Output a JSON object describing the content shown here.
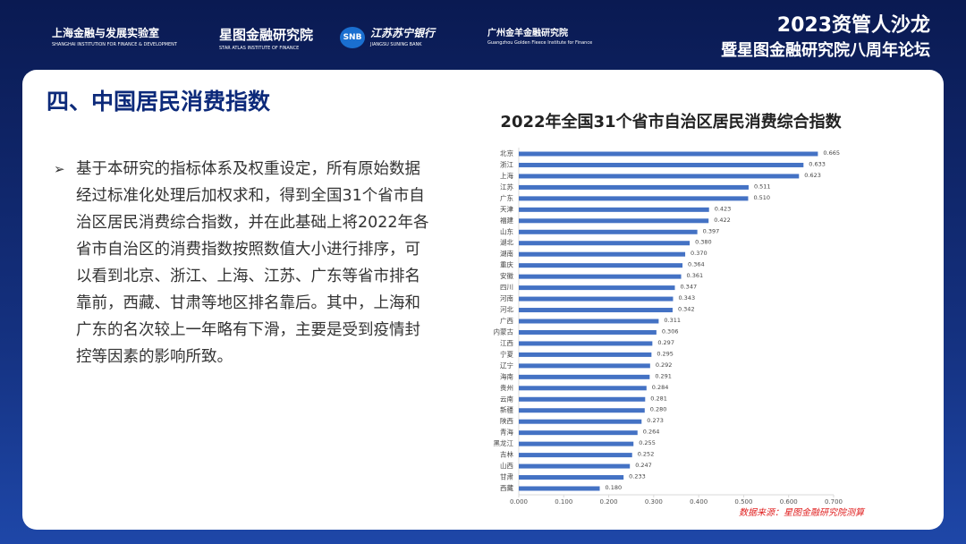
{
  "header": {
    "logos": [
      {
        "name": "上海金融与发展实验室",
        "sub": "SHANGHAI INSTITUTION FOR FINANCE & DEVELOPMENT"
      },
      {
        "name": "星图金融研究院",
        "sub": "STAR ATLAS INSTITUTE OF FINANCE"
      },
      {
        "badge": "SNB",
        "name": "江苏苏宁银行",
        "sub": "JIANGSU SUNING BANK"
      },
      {
        "name": "广州金羊金融研究院",
        "sub": "Guangzhou Golden Fleece Institute for Finance"
      }
    ],
    "event_title": "2023资管人沙龙",
    "event_subtitle": "暨星图金融研究院八周年论坛"
  },
  "slide": {
    "heading": "四、中国居民消费指数",
    "bullet": "基于本研究的指标体系及权重设定，所有原始数据经过标准化处理后加权求和，得到全国31个省市自治区居民消费综合指数，并在此基础上将2022年各省市自治区的消费指数按照数值大小进行排序，可以看到北京、浙江、上海、江苏、广东等省市排名靠前，西藏、甘肃等地区排名靠后。其中，上海和广东的名次较上一年略有下滑，主要是受到疫情封控等因素的影响所致。",
    "source": "数据来源：星图金融研究院测算"
  },
  "chart_data": {
    "type": "hbar",
    "title": "2022年全国31个省市自治区居民消费综合指数",
    "color": "#4472c4",
    "categories": [
      "北京",
      "浙江",
      "上海",
      "江苏",
      "广东",
      "天津",
      "福建",
      "山东",
      "湖北",
      "湖南",
      "重庆",
      "安徽",
      "四川",
      "河南",
      "河北",
      "广西",
      "内蒙古",
      "江西",
      "宁夏",
      "辽宁",
      "海南",
      "贵州",
      "云南",
      "新疆",
      "陕西",
      "青海",
      "黑龙江",
      "吉林",
      "山西",
      "甘肃",
      "西藏"
    ],
    "values": [
      0.665,
      0.633,
      0.623,
      0.511,
      0.51,
      0.423,
      0.422,
      0.397,
      0.38,
      0.37,
      0.364,
      0.361,
      0.347,
      0.343,
      0.342,
      0.311,
      0.306,
      0.297,
      0.295,
      0.292,
      0.291,
      0.284,
      0.281,
      0.28,
      0.273,
      0.264,
      0.255,
      0.252,
      0.247,
      0.233,
      0.18
    ],
    "value_labels": [
      "0.665",
      "0.633",
      "0.623",
      "0.511",
      "0.510",
      "0.423",
      "0.422",
      "0.397",
      "0.380",
      "0.370",
      "0.364",
      "0.361",
      "0.347",
      "0.343",
      "0.342",
      "0.311",
      "0.306",
      "0.297",
      "0.295",
      "0.292",
      "0.291",
      "0.284",
      "0.281",
      "0.280",
      "0.273",
      "0.264",
      "0.255",
      "0.252",
      "0.247",
      "0.233",
      "0.180"
    ],
    "xlim": [
      0,
      0.7
    ],
    "xticks": [
      {
        "value": 0,
        "label": "0.000"
      },
      {
        "value": 0.1,
        "label": "0.100"
      },
      {
        "value": 0.2,
        "label": "0.200"
      },
      {
        "value": 0.3,
        "label": "0.300"
      },
      {
        "value": 0.4,
        "label": "0.400"
      },
      {
        "value": 0.5,
        "label": "0.500"
      },
      {
        "value": 0.6,
        "label": "0.600"
      },
      {
        "value": 0.7,
        "label": "0.700"
      }
    ]
  }
}
